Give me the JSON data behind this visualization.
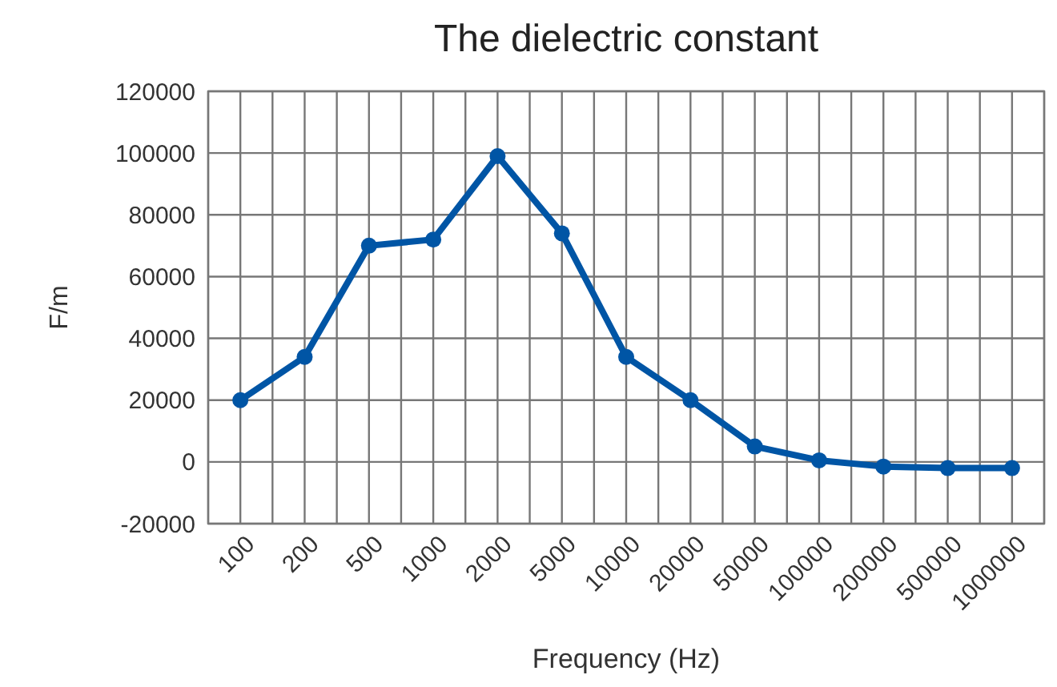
{
  "chart_data": {
    "type": "line",
    "title": "The dielectric constant",
    "xlabel": "Frequency (Hz)",
    "ylabel": "F/m",
    "categories": [
      "100",
      "200",
      "500",
      "1000",
      "2000",
      "5000",
      "10000",
      "20000",
      "50000",
      "100000",
      "200000",
      "500000",
      "1000000"
    ],
    "series": [
      {
        "color": "#0055a5",
        "values": [
          20000,
          34000,
          70000,
          72000,
          99000,
          74000,
          34000,
          20000,
          5000,
          500,
          -1500,
          -2000,
          -2000
        ]
      }
    ],
    "ylim": [
      -20000,
      120000
    ],
    "yticks": [
      -20000,
      0,
      20000,
      40000,
      60000,
      80000,
      100000,
      120000
    ],
    "grid": true,
    "marker": "circle",
    "line_style": "solid"
  }
}
